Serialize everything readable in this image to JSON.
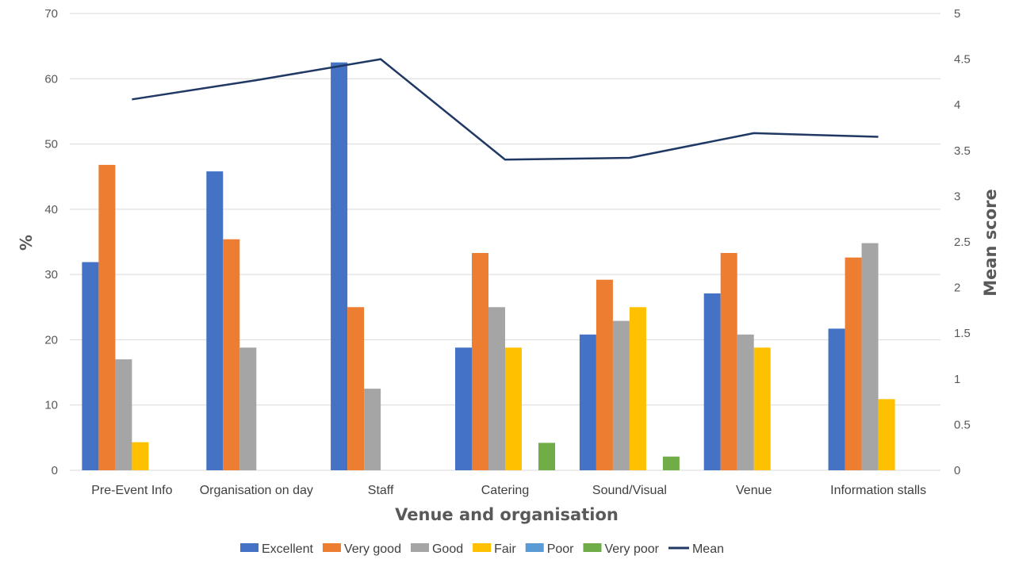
{
  "chart_data": {
    "type": "bar",
    "title": "",
    "xlabel": "Venue and organisation",
    "ylabel": "%",
    "y2label": "Mean score",
    "ylim": [
      0,
      70
    ],
    "y2lim": [
      0,
      5
    ],
    "yticks": [
      0,
      10,
      20,
      30,
      40,
      50,
      60,
      70
    ],
    "y2ticks": [
      "0",
      "0.5",
      "1",
      "1.5",
      "2",
      "2.5",
      "3",
      "3.5",
      "4",
      "4.5",
      "5"
    ],
    "grid": true,
    "legend_position": "bottom",
    "categories": [
      "Pre-Event Info",
      "Organisation on day",
      "Staff",
      "Catering",
      "Sound/Visual",
      "Venue",
      "Information stalls"
    ],
    "series": [
      {
        "name": "Excellent",
        "type": "bar",
        "color": "#4472C4",
        "values": [
          31.9,
          45.8,
          62.5,
          18.8,
          20.8,
          27.1,
          21.7
        ]
      },
      {
        "name": "Very good",
        "type": "bar",
        "color": "#ED7D31",
        "values": [
          46.8,
          35.4,
          25.0,
          33.3,
          29.2,
          33.3,
          32.6
        ]
      },
      {
        "name": "Good",
        "type": "bar",
        "color": "#A5A5A5",
        "values": [
          17.0,
          18.8,
          12.5,
          25.0,
          22.9,
          20.8,
          34.8
        ]
      },
      {
        "name": "Fair",
        "type": "bar",
        "color": "#FFC000",
        "values": [
          4.3,
          0,
          0,
          18.8,
          25.0,
          18.8,
          10.9
        ]
      },
      {
        "name": "Poor",
        "type": "bar",
        "color": "#5B9BD5",
        "values": [
          0,
          0,
          0,
          0,
          0,
          0,
          0
        ]
      },
      {
        "name": "Very poor",
        "type": "bar",
        "color": "#70AD47",
        "values": [
          0,
          0,
          0,
          4.2,
          2.1,
          0,
          0
        ]
      },
      {
        "name": "Mean",
        "type": "line",
        "axis": "secondary",
        "color": "#203864",
        "values": [
          4.06,
          4.27,
          4.5,
          3.4,
          3.42,
          3.69,
          3.65
        ]
      }
    ]
  }
}
